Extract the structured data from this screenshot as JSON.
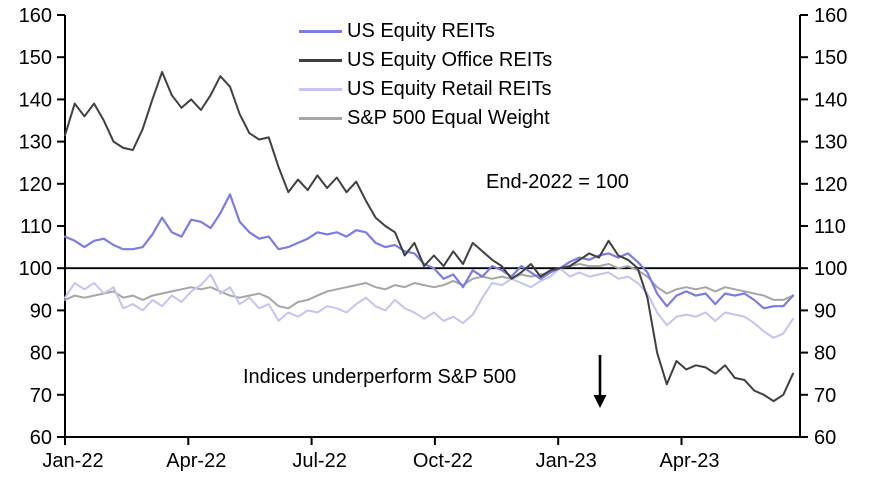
{
  "ui": {
    "annotations": {
      "index_note": "End-2022 = 100",
      "underperform_note": "Indices underperform S&P 500",
      "arrow_icon": "down-arrow"
    },
    "colors": {
      "axis": "#000000",
      "baseline": "#000000",
      "background": "#ffffff"
    }
  },
  "chart_data": {
    "type": "line",
    "title": "",
    "xlabel": "",
    "ylabel": "",
    "x_unit": "weekly points from Jan-2022 to mid-Jun-2023",
    "ylim": [
      60,
      160
    ],
    "y_ticks": [
      160,
      150,
      140,
      130,
      120,
      110,
      100,
      90,
      80,
      70,
      60
    ],
    "y_axis_sides": [
      "left",
      "right"
    ],
    "baseline_value": 100,
    "grid": false,
    "legend_position": "top-center-inside",
    "x_tick_labels": [
      "Jan-22",
      "Apr-22",
      "Jul-22",
      "Oct-22",
      "Jan-23",
      "Apr-23"
    ],
    "x_tick_months": [
      0,
      3,
      6,
      9,
      12,
      15
    ],
    "series": [
      {
        "name": "US Equity REITs",
        "slug": "us-equity-reits",
        "color": "#7c7ce1",
        "width": 2.2,
        "values": [
          107.5,
          106.5,
          105,
          106.5,
          107,
          105.5,
          104.5,
          104.5,
          105,
          108,
          112,
          108.5,
          107.5,
          111.5,
          111,
          109.5,
          113,
          117.5,
          111,
          108.5,
          107,
          107.5,
          104.5,
          105,
          106,
          107,
          108.5,
          108,
          108.5,
          107.5,
          109,
          108.5,
          106,
          105,
          105.5,
          104,
          103.5,
          101,
          100,
          97.5,
          98.5,
          95.5,
          99.5,
          98,
          100.5,
          99.5,
          98,
          100.5,
          99,
          97.5,
          99,
          100,
          101.5,
          102.5,
          102,
          103,
          103.5,
          102.5,
          103.5,
          101.5,
          99,
          94,
          91,
          93.5,
          94.5,
          93.5,
          94,
          91.5,
          94,
          93.5,
          94,
          92.5,
          90.5,
          91,
          91,
          93.5
        ]
      },
      {
        "name": "US Equity Office REITs",
        "slug": "us-equity-office-reits",
        "color": "#404040",
        "width": 2.0,
        "values": [
          131.5,
          139,
          136,
          139,
          135,
          130,
          128.5,
          128,
          133,
          140,
          146.5,
          141,
          138,
          140,
          137.5,
          141,
          145.5,
          143,
          136.5,
          132,
          130.5,
          131,
          124,
          118,
          121,
          118.5,
          122,
          119,
          121.5,
          118,
          120.5,
          116,
          112,
          110,
          108.5,
          103,
          106,
          100.5,
          103,
          100.5,
          104,
          101,
          106,
          104,
          102,
          100.5,
          97.5,
          99,
          101,
          98,
          99.5,
          100,
          100.5,
          102,
          103.5,
          102.5,
          106.5,
          103,
          102,
          100,
          93,
          80,
          72.5,
          78,
          76,
          77,
          76.5,
          75,
          77,
          74,
          73.5,
          71,
          70,
          68.5,
          70,
          75
        ]
      },
      {
        "name": "US Equity Retail REITs",
        "slug": "us-equity-retail-reits",
        "color": "#c4c4f0",
        "width": 2.0,
        "values": [
          93,
          96.5,
          95,
          96.5,
          94,
          95.5,
          90.5,
          91.5,
          90,
          92.5,
          91,
          93.5,
          92,
          94.5,
          96,
          98.5,
          94,
          95.5,
          91.5,
          93,
          90.5,
          91.5,
          87.5,
          89.5,
          88.5,
          90,
          89.5,
          91,
          90.5,
          89.5,
          91.5,
          93,
          91,
          90,
          92.5,
          90.5,
          89.5,
          88,
          89.5,
          87.5,
          88.5,
          87,
          89,
          93,
          96.5,
          96,
          97.5,
          96.5,
          95.5,
          97,
          98,
          100,
          98,
          99,
          98,
          98.5,
          99,
          97.5,
          98,
          96.5,
          94,
          89.5,
          86.5,
          88.5,
          89,
          88.5,
          89.5,
          87.5,
          89.5,
          89,
          88.5,
          87,
          85,
          83.5,
          84.5,
          88
        ]
      },
      {
        "name": "S&P 500 Equal Weight",
        "slug": "sp-500-equal-weight",
        "color": "#a6a6a6",
        "width": 2.0,
        "values": [
          92.5,
          93.5,
          93,
          93.5,
          94,
          94.5,
          93,
          93.5,
          92.5,
          93.5,
          94,
          94.5,
          95,
          95.5,
          95,
          95.5,
          94.5,
          93.5,
          93,
          93.5,
          94,
          93,
          91,
          90.5,
          92,
          92.5,
          93.5,
          94.5,
          95,
          95.5,
          96,
          96.5,
          95.5,
          95,
          96,
          95.5,
          96.5,
          96,
          95.5,
          96,
          97,
          96,
          97.5,
          98,
          97.5,
          98,
          97.5,
          98.5,
          98,
          98.5,
          99,
          100,
          100.5,
          101,
          100.5,
          100.5,
          101,
          100,
          100.5,
          99.5,
          98,
          95.5,
          94,
          95,
          95.5,
          95,
          95.5,
          94.5,
          95.5,
          95,
          94.5,
          94,
          93.5,
          92.5,
          92.5,
          93.5
        ]
      }
    ]
  }
}
